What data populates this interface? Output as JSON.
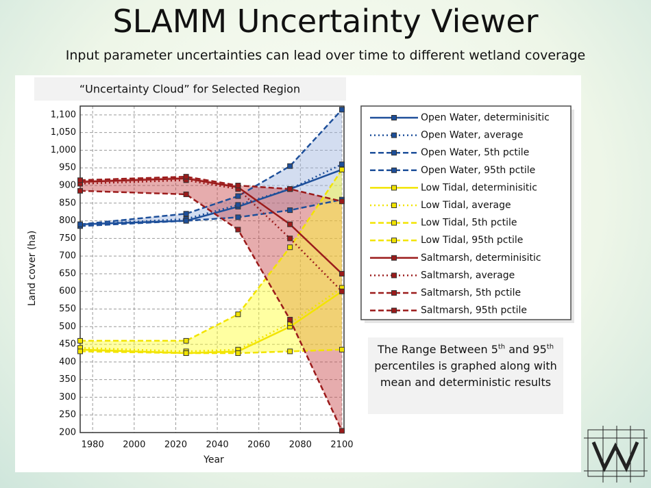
{
  "header": {
    "title": "SLAMM Uncertainty Viewer",
    "subtitle": "Input parameter uncertainties can lead over time to different wetland coverage"
  },
  "annotation": [
    "The Range Between 5",
    "th",
    " and 95",
    "th",
    " percentiles is graphed along with mean and deterministic results"
  ],
  "chart_data": {
    "type": "line",
    "title": "“Uncertainty Cloud” for Selected Region",
    "x_label": "Year",
    "y_label": "Land cover (ha)",
    "x": [
      1974,
      2025,
      2050,
      2075,
      2100
    ],
    "xlim": [
      1974,
      2101
    ],
    "xticks": [
      1980,
      2000,
      2020,
      2040,
      2060,
      2080,
      2100
    ],
    "ylim": [
      200,
      1125
    ],
    "yticks": [
      200,
      250,
      300,
      350,
      400,
      450,
      500,
      550,
      600,
      650,
      700,
      750,
      800,
      850,
      900,
      950,
      {
        "value": 1000,
        "label": "1,000"
      },
      {
        "value": 1050,
        "label": "1,050"
      },
      {
        "value": 1100,
        "label": "1,100"
      }
    ],
    "grid": true,
    "legend": "right",
    "bands": [
      {
        "lower": 2,
        "upper": 3,
        "color": "#9db4de"
      },
      {
        "lower": 10,
        "upper": 11,
        "color": "#c8474a"
      },
      {
        "lower": 6,
        "upper": 7,
        "color": "#ffff2e"
      }
    ],
    "series": [
      {
        "name": "Open Water, determinisitic",
        "color": "#1d4f9a",
        "dash": "solid",
        "values": [
          790,
          800,
          840,
          890,
          945
        ]
      },
      {
        "name": "Open Water, average",
        "color": "#1d4f9a",
        "dash": "dotted",
        "values": [
          790,
          805,
          845,
          890,
          960
        ]
      },
      {
        "name": "Open Water, 5th pctile",
        "color": "#1d4f9a",
        "dash": "dashed",
        "values": [
          785,
          800,
          810,
          830,
          860
        ]
      },
      {
        "name": "Open Water, 95th pctile",
        "color": "#1d4f9a",
        "dash": "dashed",
        "values": [
          790,
          820,
          870,
          955,
          1115
        ]
      },
      {
        "name": "Low Tidal, determinisitic",
        "color": "#f2e400",
        "dash": "solid",
        "values": [
          435,
          425,
          430,
          500,
          600
        ]
      },
      {
        "name": "Low Tidal, average",
        "color": "#f2e400",
        "dash": "dotted",
        "values": [
          440,
          430,
          435,
          510,
          610
        ]
      },
      {
        "name": "Low Tidal, 5th pctile",
        "color": "#f2e400",
        "dash": "dashed",
        "values": [
          430,
          425,
          425,
          430,
          435
        ]
      },
      {
        "name": "Low Tidal, 95th pctile",
        "color": "#f2e400",
        "dash": "dashed",
        "values": [
          460,
          460,
          535,
          725,
          945
        ]
      },
      {
        "name": "Saltmarsh, determinisitic",
        "color": "#9b1b1b",
        "dash": "solid",
        "values": [
          910,
          920,
          895,
          790,
          650
        ]
      },
      {
        "name": "Saltmarsh, average",
        "color": "#9b1b1b",
        "dash": "dotted",
        "values": [
          905,
          915,
          890,
          750,
          600
        ]
      },
      {
        "name": "Saltmarsh, 5th pctile",
        "color": "#9b1b1b",
        "dash": "dashed",
        "values": [
          885,
          875,
          775,
          520,
          205
        ]
      },
      {
        "name": "Saltmarsh, 95th pctile",
        "color": "#9b1b1b",
        "dash": "dashed",
        "values": [
          915,
          925,
          900,
          890,
          855
        ]
      }
    ]
  }
}
